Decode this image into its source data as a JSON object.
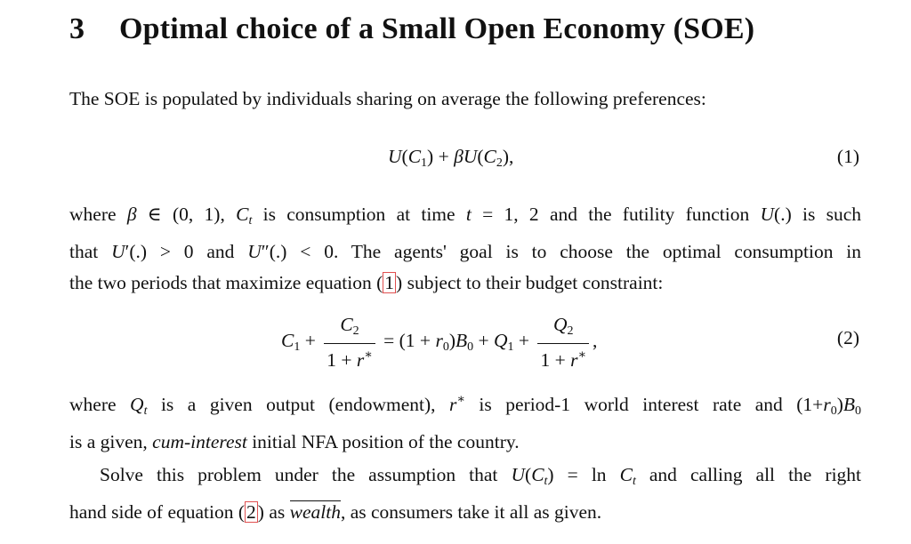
{
  "section": {
    "number": "3",
    "title": "Optimal choice of a Small Open Economy (SOE)"
  },
  "intro": "The SOE is populated by individuals sharing on average the following preferences:",
  "eq1_number": "(1)",
  "eq2_number": "(2)",
  "para2": {
    "w_where": "where",
    "w_is_consumption": "is consumption at time",
    "w_and_futility": "and the futility function",
    "w_is_such": "is such",
    "w_that": "that",
    "w_and": "and",
    "w_goal": ". The agents' goal is to choose the optimal consumption in",
    "w_line3_pre": "the two periods that maximize equation",
    "w_line3_post": "subject to their budget constraint:",
    "ref1": "1"
  },
  "para3": {
    "w_where": "where",
    "w_given_output": "is a given output (endowment),",
    "w_world_rate": "is period-1 world interest rate and",
    "w_line2_pre": "is a given,",
    "w_cum": "cum-interest",
    "w_line2_post": "initial NFA position of the country."
  },
  "para4": {
    "w_solve": "Solve this problem under the assumption that",
    "w_and_calling": "and calling all the right",
    "w_hand_side": "hand side of equation",
    "ref2": "2",
    "w_as": "as",
    "w_wealth": "wealth",
    "w_tail": ", as consumers take it all as given."
  }
}
